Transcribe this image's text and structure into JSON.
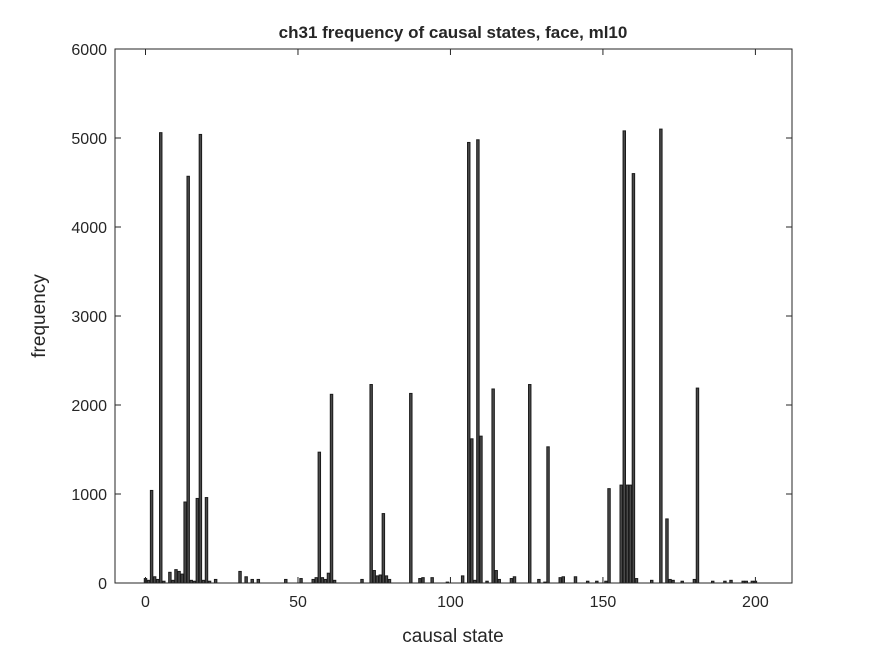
{
  "chart_data": {
    "type": "bar",
    "title": "ch31 frequency of causal states, face, ml10",
    "xlabel": "causal state",
    "ylabel": "frequency",
    "x": [
      0,
      1,
      2,
      3,
      4,
      5,
      6,
      8,
      9,
      10,
      11,
      12,
      13,
      14,
      15,
      16,
      17,
      18,
      19,
      20,
      21,
      23,
      31,
      33,
      35,
      37,
      46,
      51,
      55,
      56,
      57,
      58,
      59,
      60,
      61,
      62,
      71,
      74,
      75,
      76,
      77,
      78,
      79,
      80,
      87,
      90,
      91,
      94,
      99,
      104,
      106,
      107,
      108,
      109,
      110,
      112,
      114,
      115,
      116,
      120,
      121,
      126,
      129,
      131,
      132,
      136,
      137,
      141,
      145,
      148,
      151,
      152,
      156,
      157,
      158,
      159,
      160,
      161,
      166,
      169,
      171,
      172,
      173,
      176,
      180,
      181,
      186,
      190,
      192,
      196,
      197,
      199,
      200
    ],
    "values": [
      50,
      30,
      1040,
      70,
      40,
      5060,
      20,
      120,
      30,
      150,
      130,
      100,
      910,
      4570,
      30,
      20,
      950,
      5040,
      30,
      960,
      20,
      40,
      130,
      70,
      40,
      40,
      40,
      50,
      40,
      60,
      1470,
      60,
      40,
      110,
      2120,
      30,
      40,
      2230,
      140,
      80,
      90,
      780,
      80,
      40,
      2130,
      50,
      60,
      60,
      10,
      80,
      4950,
      1620,
      30,
      4980,
      1650,
      20,
      2180,
      140,
      40,
      50,
      70,
      2230,
      40,
      10,
      1530,
      60,
      70,
      70,
      20,
      20,
      20,
      1060,
      1100,
      5080,
      1100,
      1100,
      4600,
      50,
      30,
      5100,
      720,
      40,
      30,
      20,
      40,
      2190,
      20,
      20,
      30,
      20,
      20,
      20,
      20
    ],
    "color": "#4a4a4a",
    "xlim": [
      -10,
      212
    ],
    "xticks": [
      0,
      50,
      100,
      150,
      200
    ],
    "ylim": [
      0,
      6000
    ],
    "yticks": [
      0,
      1000,
      2000,
      3000,
      4000,
      5000,
      6000
    ]
  }
}
